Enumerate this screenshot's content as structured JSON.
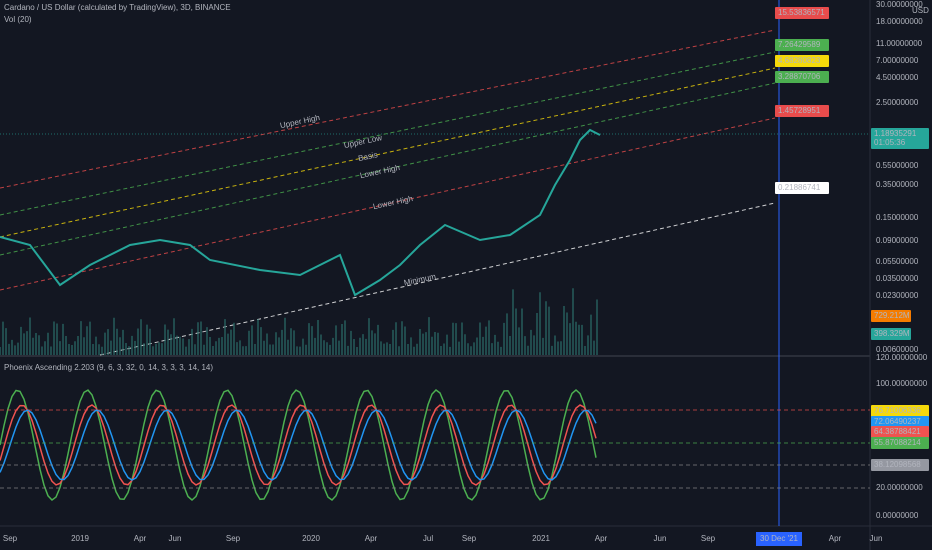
{
  "header": {
    "symbol": "Cardano / US Dollar (calculated by TradingView), 3D, BINANCE",
    "volume": "Vol (20)",
    "indicator": "Phoenix Ascending 2.203 (9, 6, 3, 32, 0, 14, 3, 3, 3, 14, 14)"
  },
  "price_axis": {
    "unit": "USD",
    "ticks": [
      "30.00000000",
      "18.00000000",
      "11.00000000",
      "7.00000000",
      "4.50000000",
      "2.50000000",
      "0.55000000",
      "0.35000000",
      "0.15000000",
      "0.09000000",
      "0.05500000",
      "0.03500000",
      "0.02300000",
      "0.00600000"
    ]
  },
  "price_labels": {
    "last": "1.18935291",
    "countdown": "01:05:36",
    "vol_ma": "729.212M",
    "vol": "398.329M"
  },
  "channel_levels": [
    "15.53836571",
    "7.26429589",
    "4.68280823",
    "3.28870706",
    "1.45728951",
    "0.21886741"
  ],
  "channel_names": [
    "Upper High",
    "Upper Low",
    "Basis",
    "Lower High",
    "Lower High",
    "Minimum"
  ],
  "indicator_axis": {
    "ticks": [
      "120.00000000",
      "100.00000000",
      "20.00000000",
      "0.00000000"
    ],
    "labels": [
      "76.71006336",
      "72.06490237",
      "64.38788421",
      "55.87088214",
      "38.12098568"
    ]
  },
  "time_axis": {
    "ticks": [
      "Sep",
      "2019",
      "Apr",
      "Jun",
      "Sep",
      "2020",
      "Apr",
      "Jul",
      "Sep",
      "2021",
      "Apr",
      "Jun",
      "Sep",
      "Apr",
      "Jun"
    ],
    "cursor": "30 Dec '21"
  }
}
